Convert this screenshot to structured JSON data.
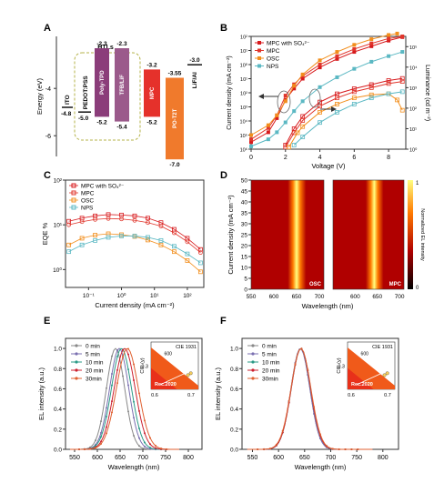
{
  "panels": {
    "A": "A",
    "B": "B",
    "C": "C",
    "D": "D",
    "E": "E",
    "F": "F"
  },
  "colors": {
    "mpc_so4": "#d7191c",
    "mpc": "#e0352b",
    "osc": "#f28e1c",
    "nps": "#5bb8c3",
    "itO": "#333333",
    "orange_fill": "#f07a2c",
    "red_fill": "#e5312b",
    "purple_fill": "#8b3d7a",
    "heat_low": "#b00000",
    "heat_high": "#ffff80"
  },
  "chart_data": [
    {
      "panel": "A",
      "type": "diagram",
      "ylabel": "Energy (eV)",
      "yticks": [
        "-4",
        "-6"
      ],
      "group_label": "HTLs",
      "levels": [
        {
          "name": "ITO",
          "value_label": "-4.8"
        },
        {
          "name": "PEDOT:PSS",
          "value_label": "-5.0"
        },
        {
          "name": "Poly-TPD",
          "top_label": "-2.3",
          "bottom_label": "-5.2"
        },
        {
          "name": "TFB/LiF",
          "top_label": "-2.3",
          "bottom_label": "-5.4"
        },
        {
          "name": "MPC",
          "top_label": "-3.2",
          "bottom_label": "-5.2"
        },
        {
          "name": "PO-T2T",
          "top_label": "-3.55",
          "bottom_label": "-7.0"
        },
        {
          "name": "LiF/Al",
          "value_label": "-3.0"
        }
      ]
    },
    {
      "panel": "B",
      "type": "line",
      "xlabel": "Voltage (V)",
      "ylabel": "Current density (mA cm⁻²)",
      "y2label": "Luminance (cd m⁻²)",
      "xlim": [
        0,
        9
      ],
      "xticks": [
        "0",
        "2",
        "4",
        "6",
        "8"
      ],
      "yticks": [
        "10⁶",
        "10⁵",
        "10⁴",
        "10³",
        "10²",
        "10¹",
        "10⁰",
        "10¹",
        "10²"
      ],
      "y2ticks": [
        "10⁰",
        "10¹",
        "10²",
        "10³",
        "10⁴",
        "10⁵"
      ],
      "ylim_log": [
        -6,
        2
      ],
      "y2lim_log": [
        0,
        5.5
      ],
      "legend": [
        "MPC with SO₄²⁻",
        "MPC",
        "OSC",
        "NPS"
      ],
      "series": [
        {
          "name": "MPC with SO₄²⁻",
          "axis": "left",
          "x": [
            0,
            1,
            1.5,
            2,
            2.5,
            3,
            4,
            5,
            6,
            7,
            8,
            8.8
          ],
          "y": [
            -5.5,
            -4.8,
            -3.8,
            -2.5,
            -1.7,
            -1.0,
            -0.2,
            0.4,
            0.9,
            1.3,
            1.7,
            1.95
          ]
        },
        {
          "name": "MPC",
          "axis": "left",
          "x": [
            0,
            1,
            1.5,
            2,
            2.5,
            3,
            4,
            5,
            6,
            7,
            8,
            8.8
          ],
          "y": [
            -5.3,
            -4.5,
            -3.6,
            -2.2,
            -1.4,
            -0.8,
            0.0,
            0.6,
            1.1,
            1.5,
            1.85,
            2.0
          ]
        },
        {
          "name": "OSC",
          "axis": "left",
          "x": [
            0,
            1,
            1.5,
            2,
            2.5,
            3,
            4,
            5,
            6,
            7,
            8,
            8.5
          ],
          "y": [
            -5.0,
            -4.3,
            -3.6,
            -2.6,
            -1.5,
            -0.7,
            0.3,
            0.9,
            1.4,
            1.8,
            2.1,
            2.2
          ]
        },
        {
          "name": "NPS",
          "axis": "left",
          "x": [
            0,
            1,
            1.5,
            2,
            2.5,
            3,
            4,
            5,
            6,
            7,
            8,
            8.8
          ],
          "y": [
            -5.8,
            -5.3,
            -4.8,
            -4.1,
            -3.3,
            -2.6,
            -1.6,
            -0.9,
            -0.3,
            0.2,
            0.6,
            0.9
          ]
        },
        {
          "name": "MPC with SO₄²⁻",
          "axis": "right",
          "x": [
            2.0,
            2.5,
            3,
            4,
            5,
            6,
            7,
            8,
            8.8
          ],
          "y": [
            0.2,
            1.0,
            1.6,
            2.3,
            2.7,
            2.95,
            3.15,
            3.35,
            3.45
          ]
        },
        {
          "name": "MPC",
          "axis": "right",
          "x": [
            2.0,
            2.5,
            3,
            4,
            5,
            6,
            7,
            8,
            8.8
          ],
          "y": [
            0.1,
            0.8,
            1.4,
            2.1,
            2.5,
            2.8,
            3.0,
            3.2,
            3.3
          ]
        },
        {
          "name": "OSC",
          "axis": "right",
          "x": [
            2.2,
            2.7,
            3,
            4,
            5,
            6,
            7,
            8,
            8.5,
            8.8
          ],
          "y": [
            0.1,
            0.8,
            1.1,
            1.8,
            2.2,
            2.5,
            2.65,
            2.7,
            2.4,
            1.9
          ]
        },
        {
          "name": "NPS",
          "axis": "right",
          "x": [
            2.5,
            3,
            4,
            5,
            6,
            7,
            8,
            8.8
          ],
          "y": [
            0.2,
            0.6,
            1.3,
            1.8,
            2.2,
            2.5,
            2.7,
            2.8
          ]
        }
      ]
    },
    {
      "panel": "C",
      "type": "scatter",
      "xlabel": "Current density (mA cm⁻²)",
      "ylabel": "EQE %",
      "xlim_log": [
        -1.7,
        2.5
      ],
      "ylim_log": [
        -0.4,
        2
      ],
      "xticks": [
        "10⁻¹",
        "10⁰",
        "10¹",
        "10²"
      ],
      "yticks": [
        "10⁰",
        "10¹",
        "10²"
      ],
      "legend": [
        "MPC with SO₄²⁻",
        "MPC",
        "OSC",
        "NPS"
      ],
      "series": [
        {
          "name": "MPC with SO₄²⁻",
          "x": [
            -1.6,
            -1.2,
            -0.8,
            -0.4,
            0,
            0.4,
            0.8,
            1.2,
            1.6,
            2.0,
            2.4
          ],
          "y": [
            1.08,
            1.15,
            1.2,
            1.23,
            1.22,
            1.2,
            1.15,
            1.05,
            0.9,
            0.7,
            0.45
          ]
        },
        {
          "name": "MPC",
          "x": [
            -1.6,
            -1.2,
            -0.8,
            -0.4,
            0,
            0.4,
            0.8,
            1.2,
            1.6,
            2.0,
            2.4
          ],
          "y": [
            1.0,
            1.07,
            1.12,
            1.14,
            1.13,
            1.1,
            1.05,
            0.97,
            0.82,
            0.62,
            0.38
          ]
        },
        {
          "name": "OSC",
          "x": [
            -1.6,
            -1.2,
            -0.8,
            -0.4,
            0,
            0.4,
            0.8,
            1.2,
            1.6,
            2.0,
            2.4
          ],
          "y": [
            0.55,
            0.7,
            0.77,
            0.8,
            0.78,
            0.74,
            0.66,
            0.55,
            0.4,
            0.2,
            -0.05
          ]
        },
        {
          "name": "NPS",
          "x": [
            -1.6,
            -1.2,
            -0.8,
            -0.4,
            0,
            0.4,
            0.8,
            1.2,
            1.6,
            2.0,
            2.4
          ],
          "y": [
            0.4,
            0.55,
            0.65,
            0.72,
            0.75,
            0.75,
            0.72,
            0.65,
            0.52,
            0.35,
            0.15
          ]
        }
      ]
    },
    {
      "panel": "D",
      "type": "heatmap",
      "xlabel": "Wavelength (nm)",
      "ylabel": "Current density (mA cm⁻²)",
      "colorbar_label": "Normalized EL intensity",
      "colorbar_ticks": [
        "0",
        "1"
      ],
      "xticks": [
        "550",
        "600",
        "650",
        "700",
        "600",
        "650",
        "700"
      ],
      "yticks": [
        "0",
        "5",
        "10",
        "15",
        "20",
        "25",
        "30",
        "35",
        "40",
        "45",
        "50"
      ],
      "maps": [
        {
          "label": "OSC",
          "peak_nm": 650,
          "xlim": [
            550,
            710
          ]
        },
        {
          "label": "MPC",
          "peak_nm": 643,
          "xlim": [
            550,
            710
          ]
        }
      ]
    },
    {
      "panel": "E",
      "type": "line",
      "xlabel": "Wavelength (nm)",
      "ylabel": "EL intensity (a.u.)",
      "xlim": [
        530,
        830
      ],
      "ylim": [
        0,
        1.1
      ],
      "xticks": [
        "550",
        "600",
        "650",
        "700",
        "750",
        "800"
      ],
      "yticks": [
        "0.0",
        "0.2",
        "0.4",
        "0.6",
        "0.8",
        "1.0"
      ],
      "legend": [
        "0 min",
        "5 min",
        "10 min",
        "20 min",
        "30min"
      ],
      "peaks": [
        640,
        648,
        653,
        660,
        666
      ],
      "widths": [
        20,
        21,
        22,
        23,
        24
      ],
      "inset": {
        "title": "CIE 1931",
        "label": "Rec.2020",
        "ylabel": "CIE (y)",
        "xticks": [
          "0.6",
          "0.7"
        ],
        "yticks": [
          "0.3"
        ],
        "tick600": "600"
      }
    },
    {
      "panel": "F",
      "type": "line",
      "xlabel": "Wavelength (nm)",
      "ylabel": "EL intensity (a.u.)",
      "xlim": [
        530,
        830
      ],
      "ylim": [
        0,
        1.1
      ],
      "xticks": [
        "550",
        "600",
        "650",
        "700",
        "750",
        "800"
      ],
      "yticks": [
        "0.0",
        "0.2",
        "0.4",
        "0.6",
        "0.8",
        "1.0"
      ],
      "legend": [
        "0 min",
        "5 min",
        "10 min",
        "20 min",
        "30min"
      ],
      "peaks": [
        642,
        642,
        643,
        643,
        643
      ],
      "widths": [
        18,
        18,
        18.5,
        18.5,
        19
      ],
      "inset": {
        "title": "CIE 1931",
        "label": "Rec.2020",
        "ylabel": "CIE (y)",
        "xticks": [
          "0.6",
          "0.7"
        ],
        "yticks": [
          "0.3"
        ],
        "tick600": "600"
      }
    }
  ],
  "series_colors": [
    "#888888",
    "#7a6fb0",
    "#2a9a86",
    "#cc2030",
    "#e06030"
  ]
}
